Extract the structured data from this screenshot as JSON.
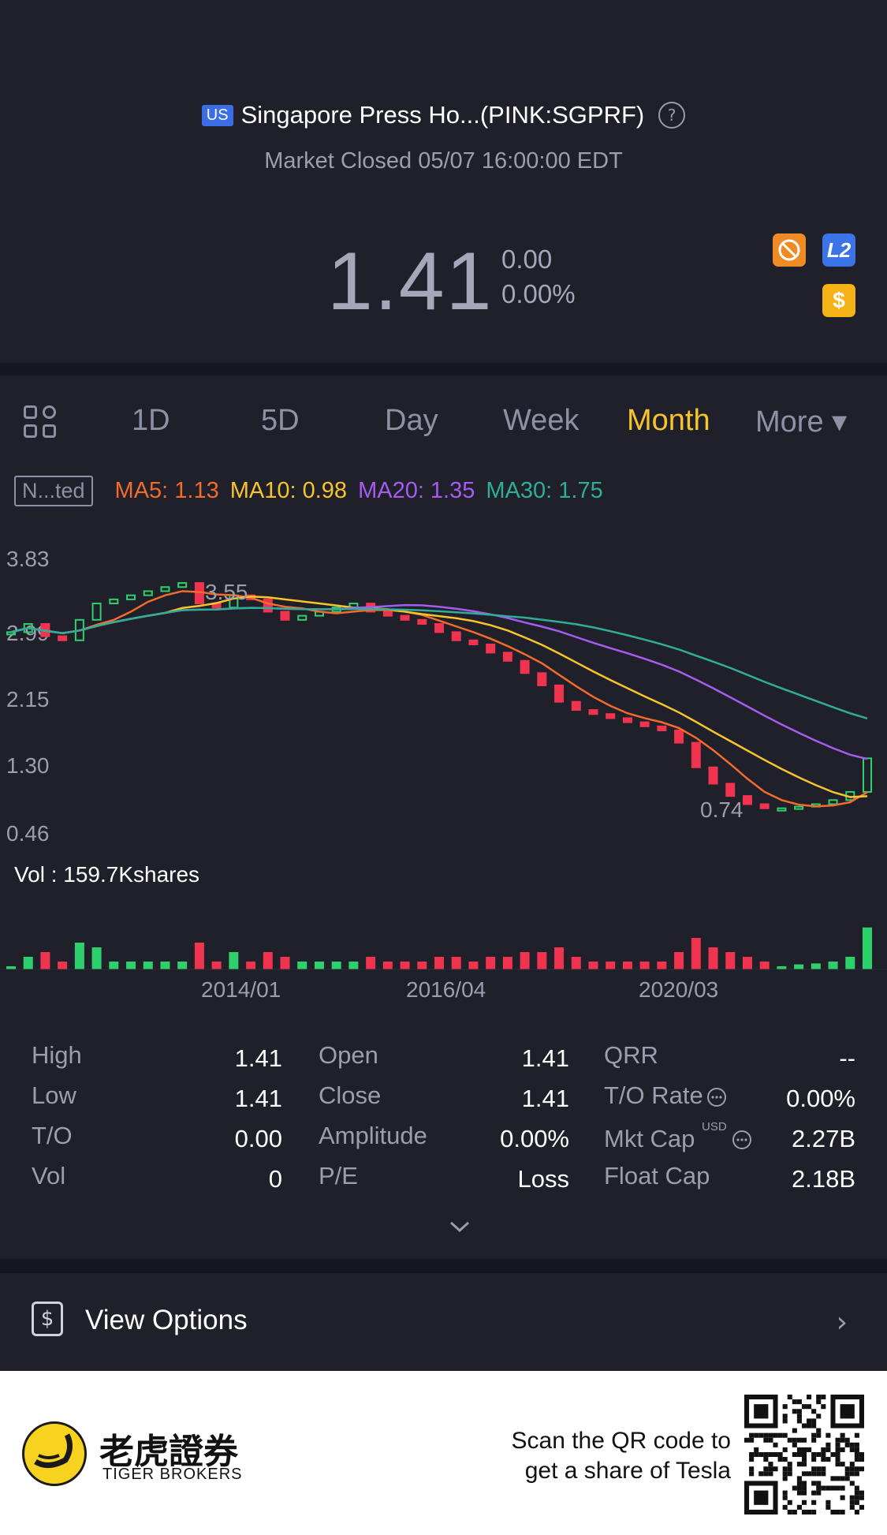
{
  "header": {
    "market_badge": "US",
    "title": "Singapore Press Ho...(PINK:SGPRF)",
    "help_glyph": "?",
    "status": "Market Closed 05/07 16:00:00 EDT",
    "price": "1.41",
    "change": "0.00",
    "change_pct": "0.00%",
    "badges": {
      "l2": "L2",
      "dollar": "$",
      "orange": "no-sign-icon"
    }
  },
  "tabs": {
    "items": [
      "1D",
      "5D",
      "Day",
      "Week",
      "Month",
      "More ▾"
    ],
    "active": "Month"
  },
  "indicators": {
    "mode": "N...ted",
    "ma5": "MA5: 1.13",
    "ma10": "MA10: 0.98",
    "ma20": "MA20: 1.35",
    "ma30": "MA30: 1.75",
    "colors": {
      "ma5": "#f26b2c",
      "ma10": "#f7c52b",
      "ma20": "#a55cf0",
      "ma30": "#2fae97",
      "up": "#2ed06e",
      "down": "#f0344f"
    }
  },
  "chart_data": {
    "type": "candlestick",
    "y_ticks": [
      "3.83",
      "2.99",
      "2.15",
      "1.30",
      "0.46"
    ],
    "ylim": [
      0.46,
      3.83
    ],
    "x_ticks": [
      "2014/01",
      "2016/04",
      "2020/03"
    ],
    "high_marker": "3.55",
    "low_marker": "0.74",
    "volume_label": "Vol  : 159.7Kshares",
    "closes": [
      2.95,
      3.05,
      2.9,
      2.85,
      3.1,
      3.3,
      3.35,
      3.4,
      3.45,
      3.5,
      3.55,
      3.3,
      3.25,
      3.4,
      3.35,
      3.2,
      3.1,
      3.15,
      3.2,
      3.25,
      3.3,
      3.2,
      3.15,
      3.1,
      3.05,
      2.95,
      2.85,
      2.8,
      2.7,
      2.6,
      2.45,
      2.3,
      2.1,
      2.0,
      1.95,
      1.9,
      1.85,
      1.8,
      1.75,
      1.6,
      1.3,
      1.1,
      0.95,
      0.85,
      0.8,
      0.8,
      0.82,
      0.85,
      0.9,
      1.0,
      1.41
    ]
  },
  "stats": [
    {
      "label": "High",
      "value": "1.41"
    },
    {
      "label": "Low",
      "value": "1.41"
    },
    {
      "label": "T/O",
      "value": "0.00"
    },
    {
      "label": "Vol",
      "value": "0"
    },
    {
      "label": "Open",
      "value": "1.41"
    },
    {
      "label": "Close",
      "value": "1.41"
    },
    {
      "label": "Amplitude",
      "value": "0.00%"
    },
    {
      "label": "P/E",
      "value": "Loss"
    },
    {
      "label": "QRR",
      "value": "--"
    },
    {
      "label": "T/O Rate",
      "value": "0.00%"
    },
    {
      "label": "Mkt Cap",
      "value": "2.27B",
      "sup": "USD"
    },
    {
      "label": "Float Cap",
      "value": "2.18B"
    }
  ],
  "options": {
    "label": "View Options",
    "icon": "dollar-icon"
  },
  "footer": {
    "brand_cn": "老虎證券",
    "brand_en": "TIGER BROKERS",
    "scan_line1": "Scan the QR code to",
    "scan_line2": "get a share of Tesla"
  }
}
